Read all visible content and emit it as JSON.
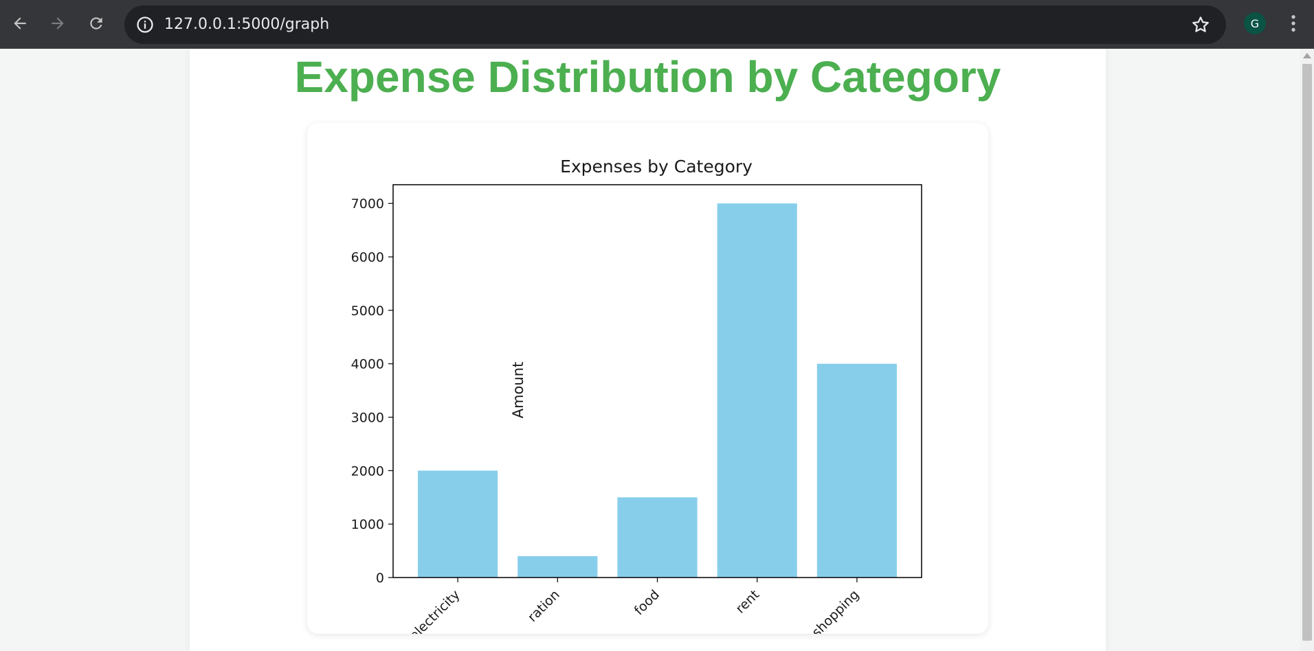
{
  "browser": {
    "url": "127.0.0.1:5000/graph",
    "profile_initial": "G",
    "icons": {
      "back": "back-arrow-icon",
      "forward": "forward-arrow-icon",
      "reload": "reload-icon",
      "site_info": "info-icon",
      "bookmark": "star-icon",
      "menu": "kebab-menu-icon"
    }
  },
  "page": {
    "title": "Expense Distribution by Category",
    "title_color": "#4caf50"
  },
  "chart_data": {
    "type": "bar",
    "title": "Expenses by Category",
    "xlabel": "",
    "ylabel": "Amount",
    "categories": [
      "electricity",
      "ration",
      "food",
      "rent",
      "shopping"
    ],
    "values": [
      2000,
      400,
      1500,
      7000,
      4000
    ],
    "ylim": [
      0,
      7350
    ],
    "yticks": [
      0,
      1000,
      2000,
      3000,
      4000,
      5000,
      6000,
      7000
    ],
    "bar_color": "#87ceeb",
    "grid": false
  }
}
